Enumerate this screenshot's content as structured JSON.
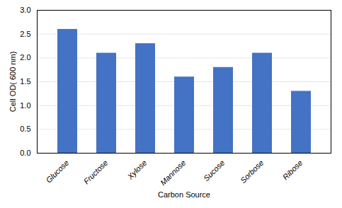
{
  "chart_data": {
    "type": "bar",
    "categories": [
      "Glucose",
      "Fructose",
      "Xylose",
      "Mannose",
      "Sucose",
      "Sorbose",
      "Ribose"
    ],
    "values": [
      2.6,
      2.1,
      2.3,
      1.6,
      1.8,
      2.1,
      1.3
    ],
    "color": "#4472C4",
    "xlabel": "Carbon Source",
    "ylabel": "Cell OD( 600 nm)",
    "ylim": [
      0,
      3
    ],
    "yticks": [
      {
        "value": 0,
        "label": "0.0"
      },
      0.5,
      {
        "value": 1,
        "label": "1.0"
      },
      1.5,
      {
        "value": 2,
        "label": "2.0"
      },
      2.5,
      {
        "value": 3,
        "label": "3.0"
      }
    ],
    "grid": true
  }
}
